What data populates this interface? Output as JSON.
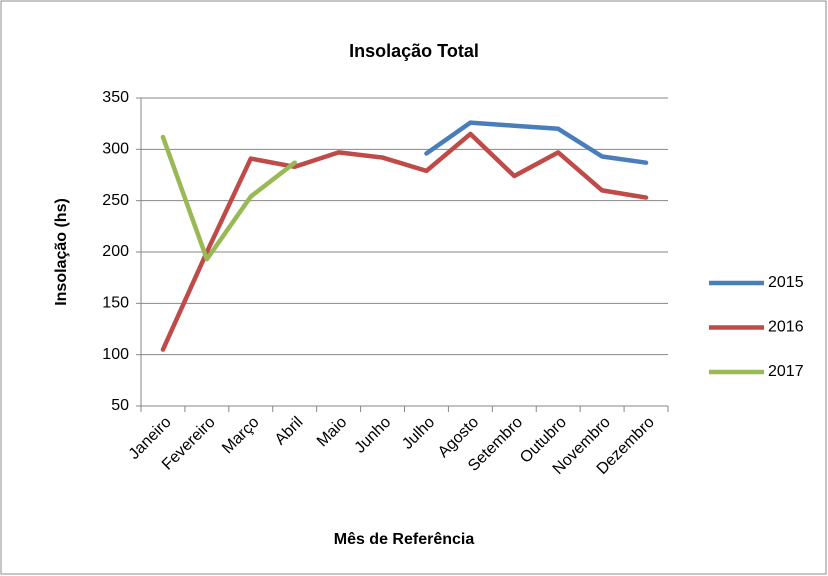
{
  "chart_data": {
    "type": "line",
    "title": "Insolação Total",
    "x_label": "Mês de Referência",
    "y_label": "Insolação (hs)",
    "categories": [
      "Janeiro",
      "Fevereiro",
      "Março",
      "Abril",
      "Maio",
      "Junho",
      "Julho",
      "Agosto",
      "Setembro",
      "Outubro",
      "Novembro",
      "Dezembro"
    ],
    "series": [
      {
        "name": "2015",
        "color": "#4a7ebb",
        "values": [
          null,
          null,
          null,
          null,
          null,
          null,
          296,
          326,
          323,
          320,
          293,
          287
        ]
      },
      {
        "name": "2016",
        "color": "#be4b48",
        "values": [
          105,
          200,
          291,
          283,
          297,
          292,
          279,
          315,
          274,
          297,
          260,
          253
        ]
      },
      {
        "name": "2017",
        "color": "#98b954",
        "values": [
          312,
          193,
          254,
          287,
          null,
          null,
          null,
          null,
          null,
          null,
          null,
          null
        ]
      }
    ],
    "ylim": [
      50,
      350
    ],
    "yticks": [
      50,
      100,
      150,
      200,
      250,
      300,
      350
    ],
    "grid": true,
    "legend": "right"
  }
}
